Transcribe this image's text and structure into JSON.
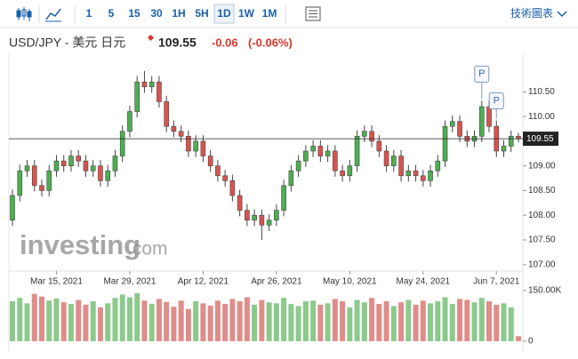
{
  "toolbar": {
    "intervals": [
      "1",
      "5",
      "15",
      "30",
      "1H",
      "5H",
      "1D",
      "1W",
      "1M"
    ],
    "selected": "1D",
    "menu": "技術圖表"
  },
  "header": {
    "pair": "USD/JPY - 美元 日元",
    "change": "-0.06",
    "change_percent": "(-0.06%)"
  },
  "chart_data": {
    "type": "candlestick",
    "watermark": [
      "investing",
      ".com"
    ],
    "annotations": [
      "P",
      "P"
    ],
    "categories": [
      null,
      null,
      null,
      null,
      null,
      null,
      "Mar 15, 2021",
      null,
      null,
      null,
      null,
      null,
      null,
      null,
      null,
      null,
      "Mar 29, 2021",
      null,
      null,
      null,
      null,
      null,
      null,
      null,
      null,
      null,
      "Apr 12, 2021",
      null,
      null,
      null,
      null,
      null,
      null,
      null,
      null,
      null,
      "Apr 26, 2021",
      null,
      null,
      null,
      null,
      null,
      null,
      null,
      null,
      null,
      "May 10, 2021",
      null,
      null,
      null,
      null,
      null,
      null,
      null,
      null,
      null,
      "May 24, 2021",
      null,
      null,
      null,
      null,
      null,
      null,
      null,
      null,
      null,
      "Jun 7, 2021",
      null,
      null,
      null
    ],
    "open": [
      107.9,
      108.4,
      108.9,
      109.0,
      108.6,
      108.5,
      108.9,
      109.1,
      109.0,
      109.2,
      109.1,
      108.9,
      109.0,
      108.7,
      108.9,
      109.2,
      109.7,
      110.1,
      110.7,
      110.6,
      110.7,
      110.3,
      109.8,
      109.7,
      109.6,
      109.3,
      109.5,
      109.2,
      109.0,
      108.8,
      108.7,
      108.4,
      108.1,
      107.9,
      108.0,
      107.8,
      107.9,
      108.1,
      108.6,
      108.9,
      109.1,
      109.3,
      109.4,
      109.2,
      109.3,
      108.9,
      108.8,
      109.0,
      109.6,
      109.7,
      109.5,
      109.3,
      109.0,
      109.2,
      108.8,
      108.9,
      108.8,
      108.7,
      108.9,
      109.1,
      109.8,
      109.9,
      109.6,
      109.5,
      109.6,
      110.2,
      109.8,
      109.3,
      109.4,
      109.6
    ],
    "high": [
      108.52,
      109.02,
      109.12,
      109.12,
      108.72,
      109.02,
      109.22,
      109.22,
      109.32,
      109.32,
      109.22,
      109.12,
      109.12,
      109.02,
      109.32,
      109.82,
      110.22,
      110.82,
      110.92,
      110.82,
      110.82,
      110.42,
      109.92,
      109.82,
      109.72,
      109.62,
      109.62,
      109.32,
      109.12,
      108.92,
      108.82,
      108.52,
      108.22,
      108.12,
      108.12,
      108.02,
      108.22,
      108.72,
      109.02,
      109.22,
      109.42,
      109.52,
      109.52,
      109.42,
      109.42,
      109.02,
      109.12,
      109.72,
      109.82,
      109.82,
      109.62,
      109.42,
      109.32,
      109.32,
      109.02,
      109.02,
      108.92,
      109.02,
      109.22,
      109.92,
      110.02,
      110.02,
      109.72,
      109.72,
      110.32,
      110.32,
      109.92,
      109.52,
      109.72,
      109.67
    ],
    "low": [
      107.78,
      108.28,
      108.78,
      108.48,
      108.38,
      108.38,
      108.78,
      108.88,
      108.88,
      108.98,
      108.78,
      108.78,
      108.58,
      108.58,
      108.78,
      109.08,
      109.58,
      109.98,
      110.48,
      110.48,
      110.18,
      109.68,
      109.58,
      109.48,
      109.18,
      109.18,
      109.08,
      108.88,
      108.68,
      108.58,
      108.28,
      107.98,
      107.78,
      107.78,
      107.5,
      107.68,
      107.78,
      107.98,
      108.48,
      108.78,
      108.98,
      109.18,
      109.08,
      109.08,
      108.78,
      108.68,
      108.68,
      108.88,
      109.48,
      109.38,
      109.18,
      108.88,
      108.88,
      108.68,
      108.68,
      108.68,
      108.58,
      108.58,
      108.78,
      108.98,
      109.68,
      109.48,
      109.38,
      109.38,
      109.48,
      109.68,
      109.18,
      109.18,
      109.28,
      109.48
    ],
    "close": [
      108.4,
      108.9,
      109.0,
      108.6,
      108.5,
      108.9,
      109.1,
      109.0,
      109.2,
      109.1,
      108.9,
      109.0,
      108.7,
      108.9,
      109.2,
      109.7,
      110.1,
      110.7,
      110.6,
      110.7,
      110.3,
      109.8,
      109.7,
      109.6,
      109.3,
      109.5,
      109.2,
      109.0,
      108.8,
      108.7,
      108.4,
      108.1,
      107.9,
      108.0,
      107.8,
      107.9,
      108.1,
      108.6,
      108.9,
      109.1,
      109.3,
      109.4,
      109.2,
      109.3,
      108.9,
      108.8,
      109.0,
      109.6,
      109.7,
      109.5,
      109.3,
      109.0,
      109.2,
      108.8,
      108.9,
      108.8,
      108.7,
      108.9,
      109.1,
      109.8,
      109.9,
      109.6,
      109.5,
      109.6,
      110.2,
      109.8,
      109.3,
      109.4,
      109.6,
      109.55
    ],
    "volume": [
      118000,
      128000,
      112000,
      140000,
      132000,
      120000,
      126000,
      115000,
      110000,
      122000,
      108000,
      118000,
      100000,
      112000,
      128000,
      138000,
      130000,
      142000,
      120000,
      110000,
      125000,
      116000,
      102000,
      120000,
      95000,
      118000,
      112000,
      105000,
      120000,
      110000,
      125000,
      118000,
      130000,
      108000,
      122000,
      115000,
      112000,
      128000,
      110000,
      104000,
      118000,
      120000,
      108000,
      112000,
      125000,
      118000,
      100000,
      122000,
      115000,
      128000,
      110000,
      118000,
      104000,
      115000,
      122000,
      108000,
      120000,
      112000,
      118000,
      130000,
      110000,
      125000,
      122000,
      115000,
      128000,
      118000,
      108000,
      112000,
      100000,
      15000
    ],
    "up_color": "#4caf50",
    "down_color": "#d9534f",
    "volume_up_color": "#8cc98c",
    "volume_down_color": "#df8d8a",
    "ylim": [
      106.87,
      111.28
    ],
    "yticks": [
      {
        "value": 107,
        "label": "107.00"
      },
      {
        "value": 107.5,
        "label": "107.50"
      },
      {
        "value": 108,
        "label": "108.00"
      },
      {
        "value": 108.5,
        "label": "108.50"
      },
      {
        "value": 109,
        "label": "109.00"
      },
      {
        "value": 110,
        "label": "110.00"
      },
      {
        "value": 110.5,
        "label": "110.50"
      }
    ],
    "volume_ylim": [
      0,
      168000
    ],
    "volume_ticks": [
      0,
      {
        "value": 150000,
        "label": "150.00K"
      }
    ]
  }
}
